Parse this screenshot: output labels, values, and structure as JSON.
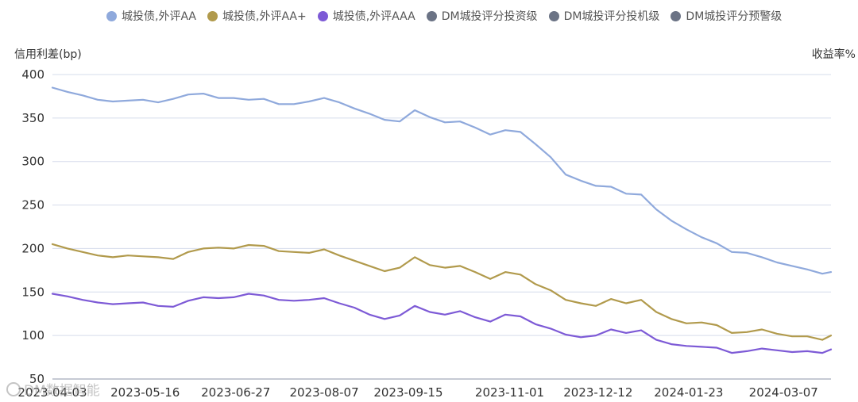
{
  "legend": [
    {
      "label": "城投债,外评AA",
      "color": "#8fa9dc"
    },
    {
      "label": "城投债,外评AA+",
      "color": "#b19a4c"
    },
    {
      "label": "城投债,外评AAA",
      "color": "#7d5ad6"
    },
    {
      "label": "DM城投评分投资级",
      "color": "#6b7385"
    },
    {
      "label": "DM城投评分投机级",
      "color": "#6b7385"
    },
    {
      "label": "DM城投评分预警级",
      "color": "#6b7385"
    }
  ],
  "watermark": "DM数据智能",
  "chart_data": {
    "type": "line",
    "ylabel": "信用利差(bp)",
    "ylabel_right": "收益率%",
    "ylim": [
      50,
      400
    ],
    "yticks": [
      400,
      350,
      300,
      250,
      200,
      150,
      100,
      50
    ],
    "xticks": [
      "2023-04-03",
      "2023-05-16",
      "2023-06-27",
      "2023-08-07",
      "2023-09-15",
      "2023-11-01",
      "2023-12-12",
      "2024-01-23",
      "2024-03-07"
    ],
    "x_start": "2023-04-03",
    "x_end": "2024-03-29",
    "grid": true,
    "legend_position": "top",
    "series": [
      {
        "name": "城投债,外评AA",
        "color": "#8fa9dc",
        "points": [
          [
            "2023-04-03",
            385
          ],
          [
            "2023-04-10",
            380
          ],
          [
            "2023-04-17",
            376
          ],
          [
            "2023-04-24",
            371
          ],
          [
            "2023-05-01",
            369
          ],
          [
            "2023-05-08",
            370
          ],
          [
            "2023-05-15",
            371
          ],
          [
            "2023-05-22",
            368
          ],
          [
            "2023-05-29",
            372
          ],
          [
            "2023-06-05",
            377
          ],
          [
            "2023-06-12",
            378
          ],
          [
            "2023-06-19",
            373
          ],
          [
            "2023-06-26",
            373
          ],
          [
            "2023-07-03",
            371
          ],
          [
            "2023-07-10",
            372
          ],
          [
            "2023-07-17",
            366
          ],
          [
            "2023-07-24",
            366
          ],
          [
            "2023-07-31",
            369
          ],
          [
            "2023-08-07",
            373
          ],
          [
            "2023-08-14",
            368
          ],
          [
            "2023-08-21",
            361
          ],
          [
            "2023-08-28",
            355
          ],
          [
            "2023-09-04",
            348
          ],
          [
            "2023-09-11",
            346
          ],
          [
            "2023-09-18",
            359
          ],
          [
            "2023-09-25",
            351
          ],
          [
            "2023-10-02",
            345
          ],
          [
            "2023-10-09",
            346
          ],
          [
            "2023-10-16",
            339
          ],
          [
            "2023-10-23",
            331
          ],
          [
            "2023-10-30",
            336
          ],
          [
            "2023-11-06",
            334
          ],
          [
            "2023-11-13",
            320
          ],
          [
            "2023-11-20",
            305
          ],
          [
            "2023-11-27",
            285
          ],
          [
            "2023-12-04",
            278
          ],
          [
            "2023-12-11",
            272
          ],
          [
            "2023-12-18",
            271
          ],
          [
            "2023-12-25",
            263
          ],
          [
            "2024-01-01",
            262
          ],
          [
            "2024-01-08",
            245
          ],
          [
            "2024-01-15",
            232
          ],
          [
            "2024-01-22",
            222
          ],
          [
            "2024-01-29",
            213
          ],
          [
            "2024-02-05",
            206
          ],
          [
            "2024-02-12",
            196
          ],
          [
            "2024-02-19",
            195
          ],
          [
            "2024-02-26",
            190
          ],
          [
            "2024-03-04",
            184
          ],
          [
            "2024-03-11",
            180
          ],
          [
            "2024-03-18",
            176
          ],
          [
            "2024-03-25",
            171
          ],
          [
            "2024-03-29",
            173
          ]
        ]
      },
      {
        "name": "城投债,外评AA+",
        "color": "#b19a4c",
        "points": [
          [
            "2023-04-03",
            205
          ],
          [
            "2023-04-10",
            200
          ],
          [
            "2023-04-17",
            196
          ],
          [
            "2023-04-24",
            192
          ],
          [
            "2023-05-01",
            190
          ],
          [
            "2023-05-08",
            192
          ],
          [
            "2023-05-15",
            191
          ],
          [
            "2023-05-22",
            190
          ],
          [
            "2023-05-29",
            188
          ],
          [
            "2023-06-05",
            196
          ],
          [
            "2023-06-12",
            200
          ],
          [
            "2023-06-19",
            201
          ],
          [
            "2023-06-26",
            200
          ],
          [
            "2023-07-03",
            204
          ],
          [
            "2023-07-10",
            203
          ],
          [
            "2023-07-17",
            197
          ],
          [
            "2023-07-24",
            196
          ],
          [
            "2023-07-31",
            195
          ],
          [
            "2023-08-07",
            199
          ],
          [
            "2023-08-14",
            192
          ],
          [
            "2023-08-21",
            186
          ],
          [
            "2023-08-28",
            180
          ],
          [
            "2023-09-04",
            174
          ],
          [
            "2023-09-11",
            178
          ],
          [
            "2023-09-18",
            190
          ],
          [
            "2023-09-25",
            181
          ],
          [
            "2023-10-02",
            178
          ],
          [
            "2023-10-09",
            180
          ],
          [
            "2023-10-16",
            173
          ],
          [
            "2023-10-23",
            165
          ],
          [
            "2023-10-30",
            173
          ],
          [
            "2023-11-06",
            170
          ],
          [
            "2023-11-13",
            159
          ],
          [
            "2023-11-20",
            152
          ],
          [
            "2023-11-27",
            141
          ],
          [
            "2023-12-04",
            137
          ],
          [
            "2023-12-11",
            134
          ],
          [
            "2023-12-18",
            142
          ],
          [
            "2023-12-25",
            137
          ],
          [
            "2024-01-01",
            141
          ],
          [
            "2024-01-08",
            127
          ],
          [
            "2024-01-15",
            119
          ],
          [
            "2024-01-22",
            114
          ],
          [
            "2024-01-29",
            115
          ],
          [
            "2024-02-05",
            112
          ],
          [
            "2024-02-12",
            103
          ],
          [
            "2024-02-19",
            104
          ],
          [
            "2024-02-26",
            107
          ],
          [
            "2024-03-04",
            102
          ],
          [
            "2024-03-11",
            99
          ],
          [
            "2024-03-18",
            99
          ],
          [
            "2024-03-25",
            95
          ],
          [
            "2024-03-29",
            100
          ]
        ]
      },
      {
        "name": "城投债,外评AAA",
        "color": "#7d5ad6",
        "points": [
          [
            "2023-04-03",
            148
          ],
          [
            "2023-04-10",
            145
          ],
          [
            "2023-04-17",
            141
          ],
          [
            "2023-04-24",
            138
          ],
          [
            "2023-05-01",
            136
          ],
          [
            "2023-05-08",
            137
          ],
          [
            "2023-05-15",
            138
          ],
          [
            "2023-05-22",
            134
          ],
          [
            "2023-05-29",
            133
          ],
          [
            "2023-06-05",
            140
          ],
          [
            "2023-06-12",
            144
          ],
          [
            "2023-06-19",
            143
          ],
          [
            "2023-06-26",
            144
          ],
          [
            "2023-07-03",
            148
          ],
          [
            "2023-07-10",
            146
          ],
          [
            "2023-07-17",
            141
          ],
          [
            "2023-07-24",
            140
          ],
          [
            "2023-07-31",
            141
          ],
          [
            "2023-08-07",
            143
          ],
          [
            "2023-08-14",
            137
          ],
          [
            "2023-08-21",
            132
          ],
          [
            "2023-08-28",
            124
          ],
          [
            "2023-09-04",
            119
          ],
          [
            "2023-09-11",
            123
          ],
          [
            "2023-09-18",
            134
          ],
          [
            "2023-09-25",
            127
          ],
          [
            "2023-10-02",
            124
          ],
          [
            "2023-10-09",
            128
          ],
          [
            "2023-10-16",
            121
          ],
          [
            "2023-10-23",
            116
          ],
          [
            "2023-10-30",
            124
          ],
          [
            "2023-11-06",
            122
          ],
          [
            "2023-11-13",
            113
          ],
          [
            "2023-11-20",
            108
          ],
          [
            "2023-11-27",
            101
          ],
          [
            "2023-12-04",
            98
          ],
          [
            "2023-12-11",
            100
          ],
          [
            "2023-12-18",
            107
          ],
          [
            "2023-12-25",
            103
          ],
          [
            "2024-01-01",
            106
          ],
          [
            "2024-01-08",
            95
          ],
          [
            "2024-01-15",
            90
          ],
          [
            "2024-01-22",
            88
          ],
          [
            "2024-01-29",
            87
          ],
          [
            "2024-02-05",
            86
          ],
          [
            "2024-02-12",
            80
          ],
          [
            "2024-02-19",
            82
          ],
          [
            "2024-02-26",
            85
          ],
          [
            "2024-03-04",
            83
          ],
          [
            "2024-03-11",
            81
          ],
          [
            "2024-03-18",
            82
          ],
          [
            "2024-03-25",
            80
          ],
          [
            "2024-03-29",
            84
          ]
        ]
      }
    ]
  }
}
